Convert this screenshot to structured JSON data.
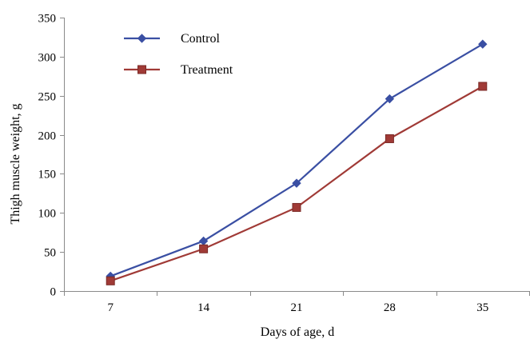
{
  "chart_data": {
    "type": "line",
    "title": "",
    "xlabel": "Days of age, d",
    "ylabel": "Thigh muscle weight, g",
    "categories": [
      "7",
      "14",
      "21",
      "28",
      "35"
    ],
    "ylim": [
      0,
      350
    ],
    "yticks": [
      "0",
      "50",
      "100",
      "150",
      "200",
      "250",
      "300",
      "350"
    ],
    "grid": false,
    "legend_position": "top-left",
    "series": [
      {
        "name": "Control",
        "values": [
          19,
          64,
          138,
          246,
          316
        ],
        "color": "#3A4FA3",
        "marker": "diamond"
      },
      {
        "name": "Treatment",
        "values": [
          13,
          54,
          107,
          195,
          262
        ],
        "color": "#A03A36",
        "marker": "square"
      }
    ]
  }
}
